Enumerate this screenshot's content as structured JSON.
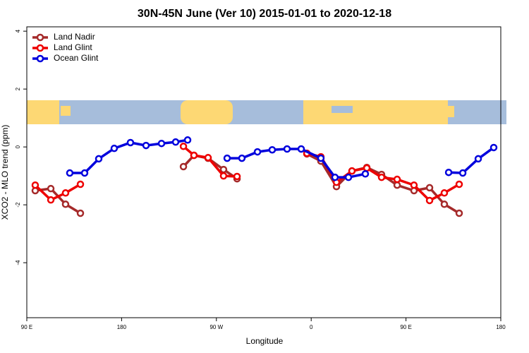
{
  "chart_data": {
    "type": "line",
    "title": "30N-45N June (Ver 10)   2015-01-01 to 2020-12-18",
    "xlabel": "Longitude",
    "ylabel": "XCO2 - MLO trend (ppm)",
    "xlim": [
      90,
      540
    ],
    "ylim": [
      -5.9,
      4.15
    ],
    "xticks": [
      {
        "value": 90,
        "label": "90 E"
      },
      180,
      {
        "value": 270,
        "label": "90 W"
      },
      {
        "value": 360,
        "label": "0"
      },
      {
        "value": 450,
        "label": "90 E"
      },
      {
        "value": 540,
        "label": "180"
      }
    ],
    "yticks": [
      -4,
      -2,
      0,
      2,
      4
    ],
    "legend": "top-left",
    "series": [
      {
        "name": "Land Nadir",
        "color": "#a52a2a",
        "x": [
          98.0,
          112.8,
          126.8,
          140.9,
          null,
          238.7,
          248.7,
          262.1,
          276.8,
          289.6,
          null,
          355.9,
          369.2,
          384.0,
          398.7,
          412.8,
          426.8,
          441.6,
          457.6,
          472.4,
          486.4,
          500.5
        ],
        "values": [
          -1.51,
          -1.44,
          -1.98,
          -2.29,
          null,
          -0.68,
          -0.29,
          -0.39,
          -0.78,
          -1.1,
          null,
          -0.24,
          -0.49,
          -1.37,
          -0.83,
          -0.71,
          -0.95,
          -1.32,
          -1.51,
          -1.41,
          -1.98,
          -2.29
        ]
      },
      {
        "name": "Land Glint",
        "color": "#ee0000",
        "x": [
          98.0,
          112.8,
          126.8,
          140.9,
          null,
          238.7,
          248.7,
          262.1,
          276.8,
          289.6,
          null,
          355.9,
          369.2,
          384.0,
          398.7,
          412.8,
          426.8,
          441.6,
          457.6,
          472.4,
          486.4,
          500.5
        ],
        "values": [
          -1.32,
          -1.83,
          -1.59,
          -1.29,
          null,
          0.02,
          -0.29,
          -0.37,
          -1.0,
          -1.02,
          null,
          -0.22,
          -0.34,
          -1.22,
          -0.83,
          -0.73,
          -1.05,
          -1.12,
          -1.32,
          -1.85,
          -1.59,
          -1.29
        ]
      },
      {
        "name": "Ocean Glint",
        "color": "#0000dd",
        "x": [
          130.8,
          144.9,
          158.3,
          173.0,
          188.4,
          203.2,
          217.9,
          231.3,
          242.7,
          null,
          280.2,
          294.2,
          309.0,
          323.0,
          337.1,
          350.5,
          369.2,
          382.6,
          395.4,
          411.4,
          null,
          490.5,
          503.9,
          518.6,
          533.3
        ],
        "values": [
          -0.9,
          -0.9,
          -0.41,
          -0.05,
          0.15,
          0.05,
          0.12,
          0.17,
          0.24,
          null,
          -0.39,
          -0.39,
          -0.17,
          -0.1,
          -0.07,
          -0.07,
          -0.39,
          -1.05,
          -1.05,
          -0.93,
          null,
          -0.88,
          -0.9,
          -0.41,
          -0.02
        ]
      }
    ]
  }
}
